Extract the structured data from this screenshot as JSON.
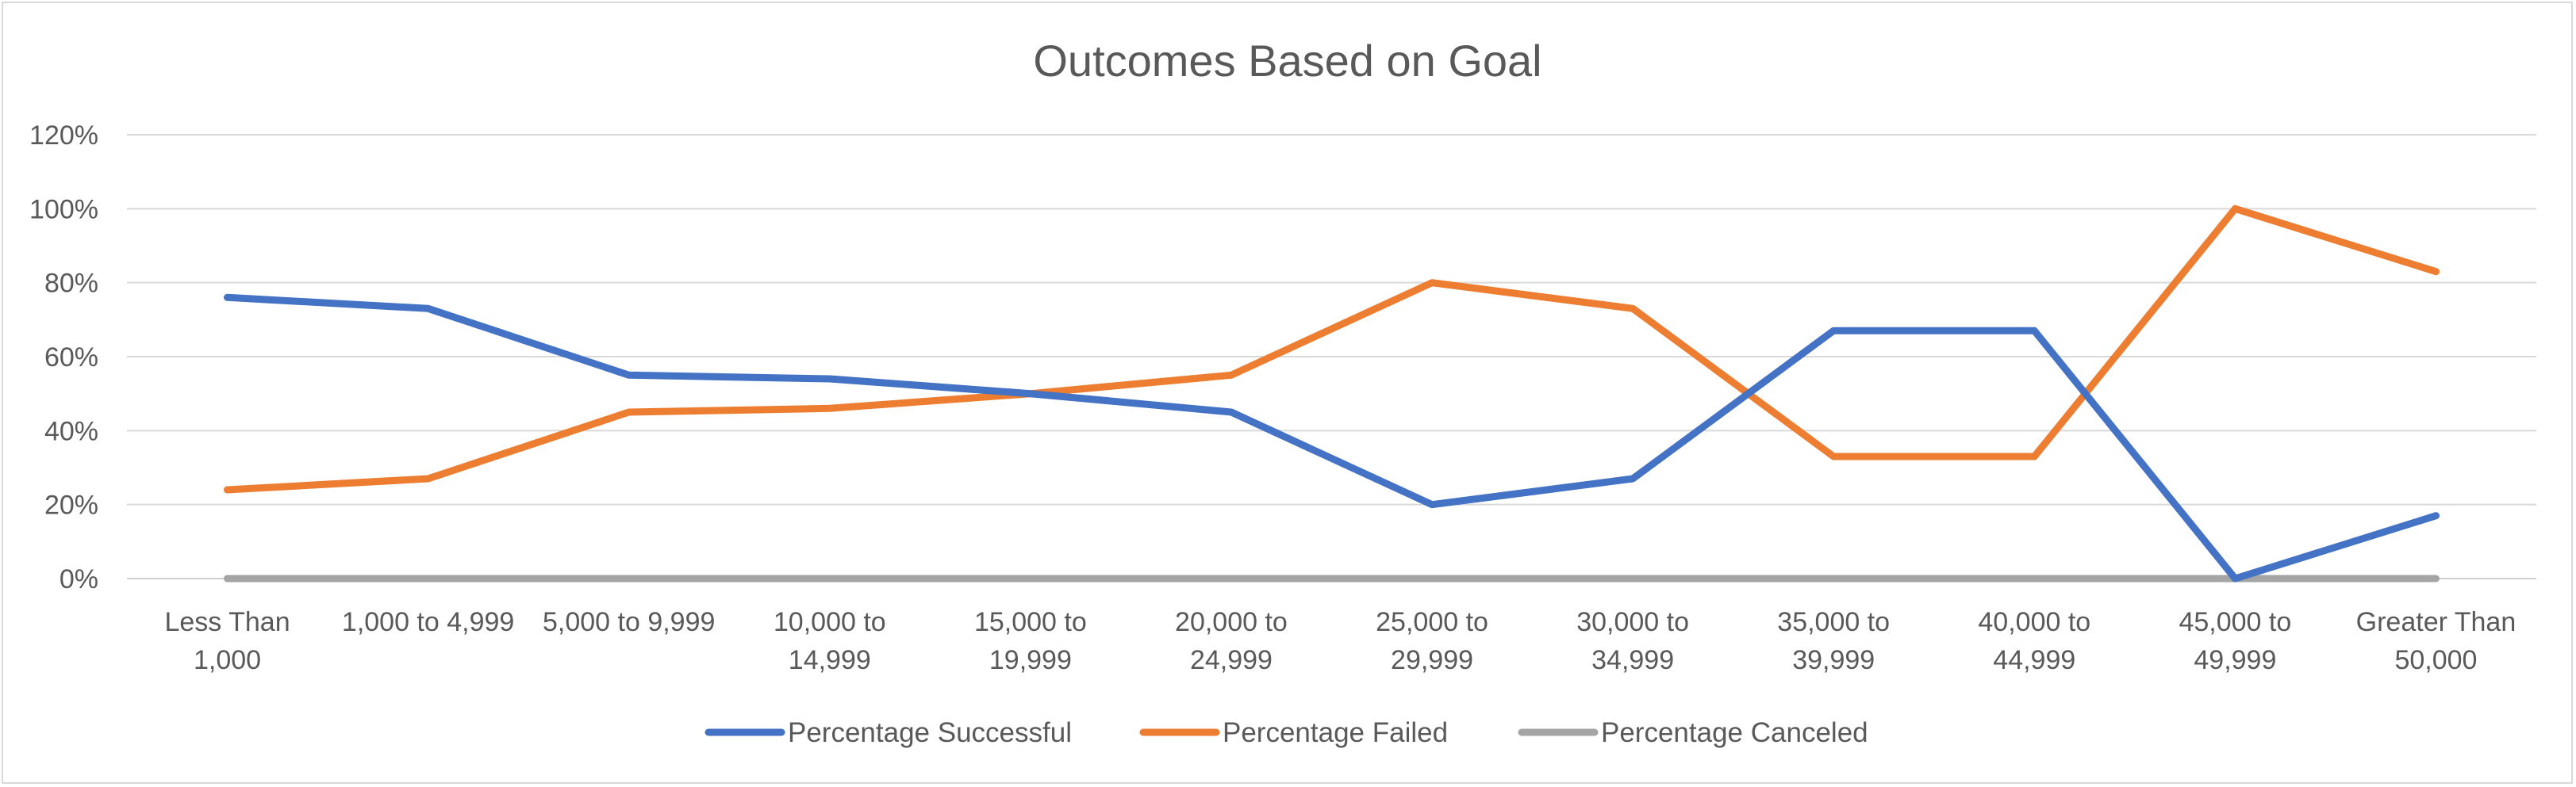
{
  "chart_data": {
    "type": "line",
    "title": "Outcomes Based on Goal",
    "xlabel": "",
    "ylabel": "",
    "categories": [
      [
        "Less Than",
        "1,000"
      ],
      [
        "1,000 to 4,999"
      ],
      [
        "5,000 to 9,999"
      ],
      [
        "10,000 to",
        "14,999"
      ],
      [
        "15,000 to",
        "19,999"
      ],
      [
        "20,000 to",
        "24,999"
      ],
      [
        "25,000 to",
        "29,999"
      ],
      [
        "30,000 to",
        "34,999"
      ],
      [
        "35,000 to",
        "39,999"
      ],
      [
        "40,000 to",
        "44,999"
      ],
      [
        "45,000 to",
        "49,999"
      ],
      [
        "Greater Than",
        "50,000"
      ]
    ],
    "y_ticks": [
      "0%",
      "20%",
      "40%",
      "60%",
      "80%",
      "100%",
      "120%"
    ],
    "ylim": [
      0,
      120
    ],
    "grid": true,
    "legend_position": "bottom",
    "series": [
      {
        "name": "Percentage Successful",
        "color": "#4472c4",
        "values": [
          76,
          73,
          55,
          54,
          50,
          45,
          20,
          27,
          67,
          67,
          0,
          17
        ]
      },
      {
        "name": "Percentage Failed",
        "color": "#ed7d31",
        "values": [
          24,
          27,
          45,
          46,
          50,
          55,
          80,
          73,
          33,
          33,
          100,
          83
        ]
      },
      {
        "name": "Percentage Canceled",
        "color": "#a5a5a5",
        "values": [
          0,
          0,
          0,
          0,
          0,
          0,
          0,
          0,
          0,
          0,
          0,
          0
        ]
      }
    ]
  }
}
